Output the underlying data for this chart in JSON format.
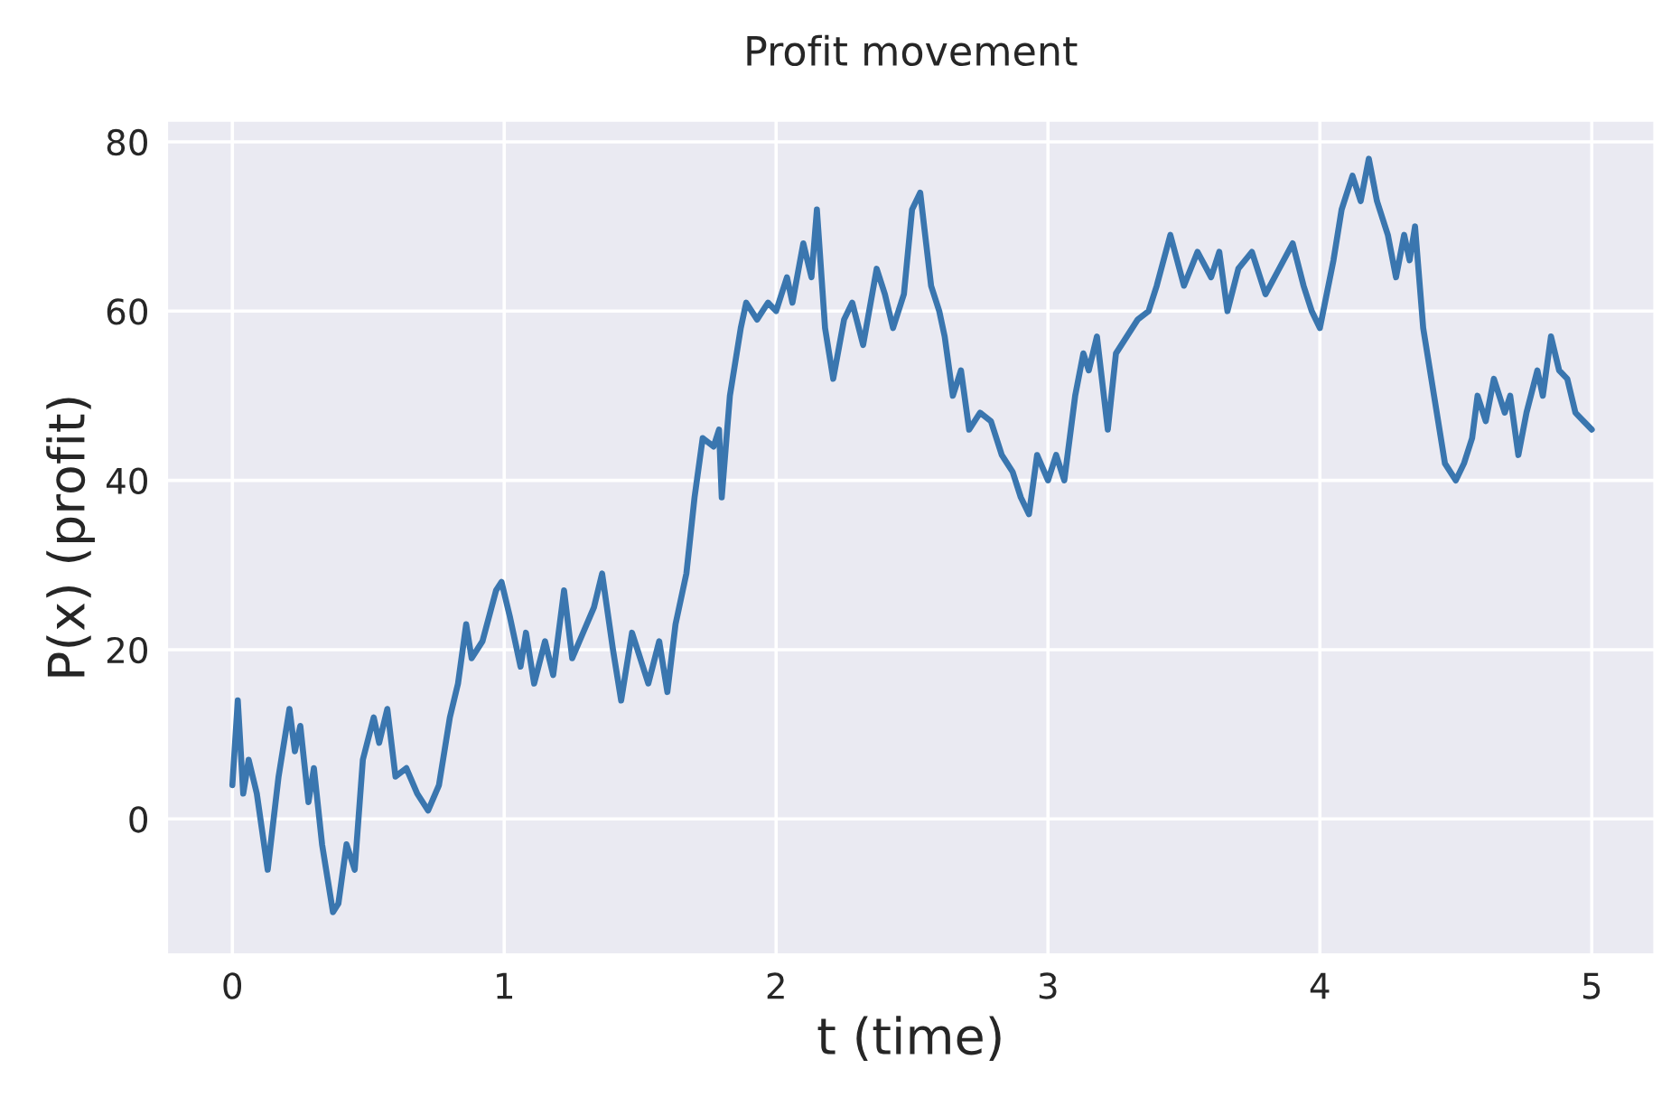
{
  "chart_data": {
    "type": "line",
    "title": "Profit movement",
    "xlabel": "t (time)",
    "ylabel": "P(x) (profit)",
    "x": [
      0.0,
      0.02,
      0.04,
      0.06,
      0.09,
      0.13,
      0.17,
      0.21,
      0.23,
      0.25,
      0.28,
      0.3,
      0.33,
      0.37,
      0.39,
      0.42,
      0.45,
      0.48,
      0.52,
      0.54,
      0.57,
      0.6,
      0.64,
      0.68,
      0.72,
      0.76,
      0.8,
      0.83,
      0.86,
      0.88,
      0.92,
      0.97,
      0.99,
      1.02,
      1.06,
      1.08,
      1.11,
      1.15,
      1.18,
      1.22,
      1.25,
      1.29,
      1.33,
      1.36,
      1.4,
      1.43,
      1.47,
      1.5,
      1.53,
      1.57,
      1.6,
      1.63,
      1.67,
      1.7,
      1.73,
      1.77,
      1.79,
      1.8,
      1.83,
      1.87,
      1.89,
      1.93,
      1.97,
      2.0,
      2.04,
      2.06,
      2.1,
      2.13,
      2.15,
      2.18,
      2.21,
      2.25,
      2.28,
      2.32,
      2.37,
      2.4,
      2.43,
      2.47,
      2.5,
      2.53,
      2.57,
      2.6,
      2.62,
      2.65,
      2.68,
      2.71,
      2.75,
      2.79,
      2.83,
      2.87,
      2.9,
      2.93,
      2.96,
      3.0,
      3.03,
      3.06,
      3.1,
      3.13,
      3.15,
      3.18,
      3.22,
      3.25,
      3.29,
      3.33,
      3.37,
      3.4,
      3.45,
      3.5,
      3.55,
      3.6,
      3.63,
      3.66,
      3.7,
      3.75,
      3.8,
      3.85,
      3.9,
      3.94,
      3.97,
      4.0,
      4.05,
      4.08,
      4.12,
      4.15,
      4.18,
      4.21,
      4.25,
      4.28,
      4.31,
      4.33,
      4.35,
      4.38,
      4.42,
      4.46,
      4.5,
      4.53,
      4.56,
      4.58,
      4.61,
      4.64,
      4.68,
      4.7,
      4.73,
      4.76,
      4.8,
      4.82,
      4.85,
      4.88,
      4.91,
      4.94,
      4.97,
      5.0
    ],
    "series": [
      {
        "color": "#3a76af",
        "values": [
          4,
          14,
          3,
          7,
          3,
          -6,
          5,
          13,
          8,
          11,
          2,
          6,
          -3,
          -11,
          -10,
          -3,
          -6,
          7,
          12,
          9,
          13,
          5,
          6,
          3,
          1,
          4,
          12,
          16,
          23,
          19,
          21,
          27,
          28,
          24,
          18,
          22,
          16,
          21,
          17,
          27,
          19,
          22,
          25,
          29,
          20,
          14,
          22,
          19,
          16,
          21,
          15,
          23,
          29,
          38,
          45,
          44,
          46,
          38,
          50,
          58,
          61,
          59,
          61,
          60,
          64,
          61,
          68,
          64,
          72,
          58,
          52,
          59,
          61,
          56,
          65,
          62,
          58,
          62,
          72,
          74,
          63,
          60,
          57,
          50,
          53,
          46,
          48,
          47,
          43,
          41,
          38,
          36,
          43,
          40,
          43,
          40,
          50,
          55,
          53,
          57,
          46,
          55,
          57,
          59,
          60,
          63,
          69,
          63,
          67,
          64,
          67,
          60,
          65,
          67,
          62,
          65,
          68,
          63,
          60,
          58,
          66,
          72,
          76,
          73,
          78,
          73,
          69,
          64,
          69,
          66,
          70,
          58,
          50,
          42,
          40,
          42,
          45,
          50,
          47,
          52,
          48,
          50,
          43,
          48,
          53,
          50,
          57,
          53,
          52,
          48,
          47,
          46
        ]
      }
    ],
    "xlim": [
      -0.24,
      5.23
    ],
    "ylim": [
      -16,
      82.5
    ],
    "xticks": [
      0,
      1,
      2,
      3,
      4,
      5
    ],
    "yticks": [
      0,
      20,
      40,
      60,
      80
    ],
    "grid": true,
    "line_style": "solid",
    "marker": "none"
  }
}
